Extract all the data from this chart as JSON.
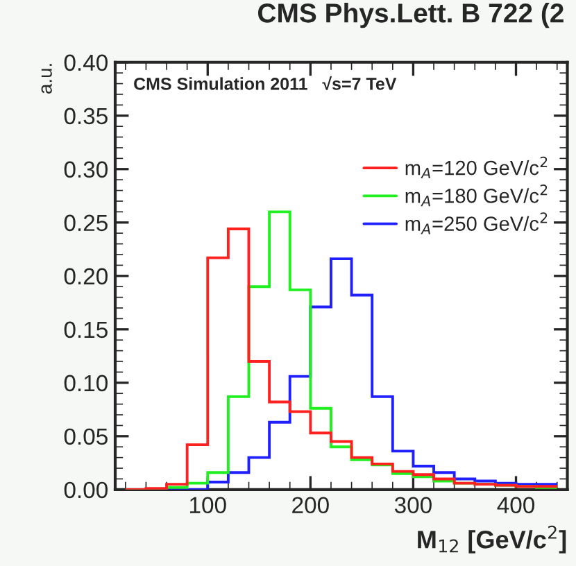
{
  "chart_data": {
    "type": "histogram",
    "title": "CMS Phys.Lett. B 722 (2",
    "xlabel": "M$_{12}$ [GeV/c$^{2}$]",
    "ylabel": "a.u.",
    "annotations": [
      "CMS Simulation 2011   √s=7 TeV"
    ],
    "bins": [
      20,
      40,
      60,
      80,
      100,
      120,
      140,
      160,
      180,
      200,
      220,
      240,
      260,
      280,
      300,
      320,
      340,
      360,
      380,
      400,
      420,
      440
    ],
    "series": [
      {
        "name": "m$_{A}$=120 GeV/c$^{2}$",
        "color": "#ff2020",
        "values": [
          0,
          0.001,
          0.005,
          0.042,
          0.217,
          0.244,
          0.12,
          0.082,
          0.073,
          0.053,
          0.045,
          0.03,
          0.024,
          0.017,
          0.014,
          0.01,
          0.006,
          0.005,
          0.004,
          0.003,
          0.003
        ]
      },
      {
        "name": "m$_{A}$=180 GeV/c$^{2}$",
        "color": "#20f020",
        "values": [
          0,
          0,
          0.002,
          0.006,
          0.016,
          0.087,
          0.19,
          0.26,
          0.187,
          0.076,
          0.04,
          0.028,
          0.023,
          0.015,
          0.012,
          0.008,
          0.006,
          0.005,
          0.004,
          0.003,
          0.002
        ]
      },
      {
        "name": "m$_{A}$=250 GeV/c$^{2}$",
        "color": "#2020ff",
        "values": [
          0,
          0,
          0,
          0,
          0.007,
          0.016,
          0.03,
          0.063,
          0.106,
          0.171,
          0.216,
          0.182,
          0.087,
          0.036,
          0.022,
          0.016,
          0.01,
          0.008,
          0.006,
          0.005,
          0.005
        ]
      }
    ],
    "xlim": [
      10,
      450
    ],
    "xticks": [
      100,
      200,
      300,
      400
    ],
    "ylim": [
      0,
      0.4
    ],
    "yticks": [
      {
        "value": 0,
        "label": "0.00"
      },
      {
        "value": 0.05,
        "label": "0.05"
      },
      {
        "value": 0.1,
        "label": "0.10"
      },
      {
        "value": 0.15,
        "label": "0.15"
      },
      {
        "value": 0.2,
        "label": "0.20"
      },
      {
        "value": 0.25,
        "label": "0.25"
      },
      {
        "value": 0.3,
        "label": "0.30"
      },
      {
        "value": 0.35,
        "label": "0.35"
      },
      {
        "value": 0.4,
        "label": "0.40"
      }
    ],
    "legend": "top right",
    "grid": false
  }
}
